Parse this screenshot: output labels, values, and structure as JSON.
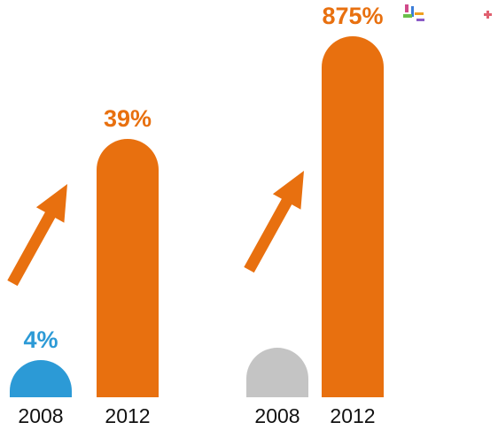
{
  "colors": {
    "orange": "#e8700f",
    "blue": "#2c9ad6",
    "gray": "#c4c4c4",
    "text": "#111111"
  },
  "chart_data": [
    {
      "type": "bar",
      "categories": [
        "2008",
        "2012"
      ],
      "values": [
        4,
        39
      ],
      "value_labels": [
        "4%",
        "39%"
      ],
      "unit": "%",
      "bar_colors": [
        "#2c9ad6",
        "#e8700f"
      ],
      "label_colors": [
        "#2c9ad6",
        "#e8700f"
      ],
      "trend_arrow": "up",
      "title": "",
      "xlabel": "",
      "ylabel": "",
      "grid": false
    },
    {
      "type": "bar",
      "categories": [
        "2008",
        "2012"
      ],
      "values": [
        null,
        875
      ],
      "value_labels": [
        "",
        "875%"
      ],
      "unit": "%",
      "bar_colors": [
        "#c4c4c4",
        "#e8700f"
      ],
      "label_colors": [
        "#c4c4c4",
        "#e8700f"
      ],
      "trend_arrow": "up",
      "title": "",
      "xlabel": "",
      "ylabel": "",
      "grid": false
    }
  ],
  "decor": {
    "icons": [
      "toolbar-grid-icon",
      "plus-icon"
    ]
  }
}
